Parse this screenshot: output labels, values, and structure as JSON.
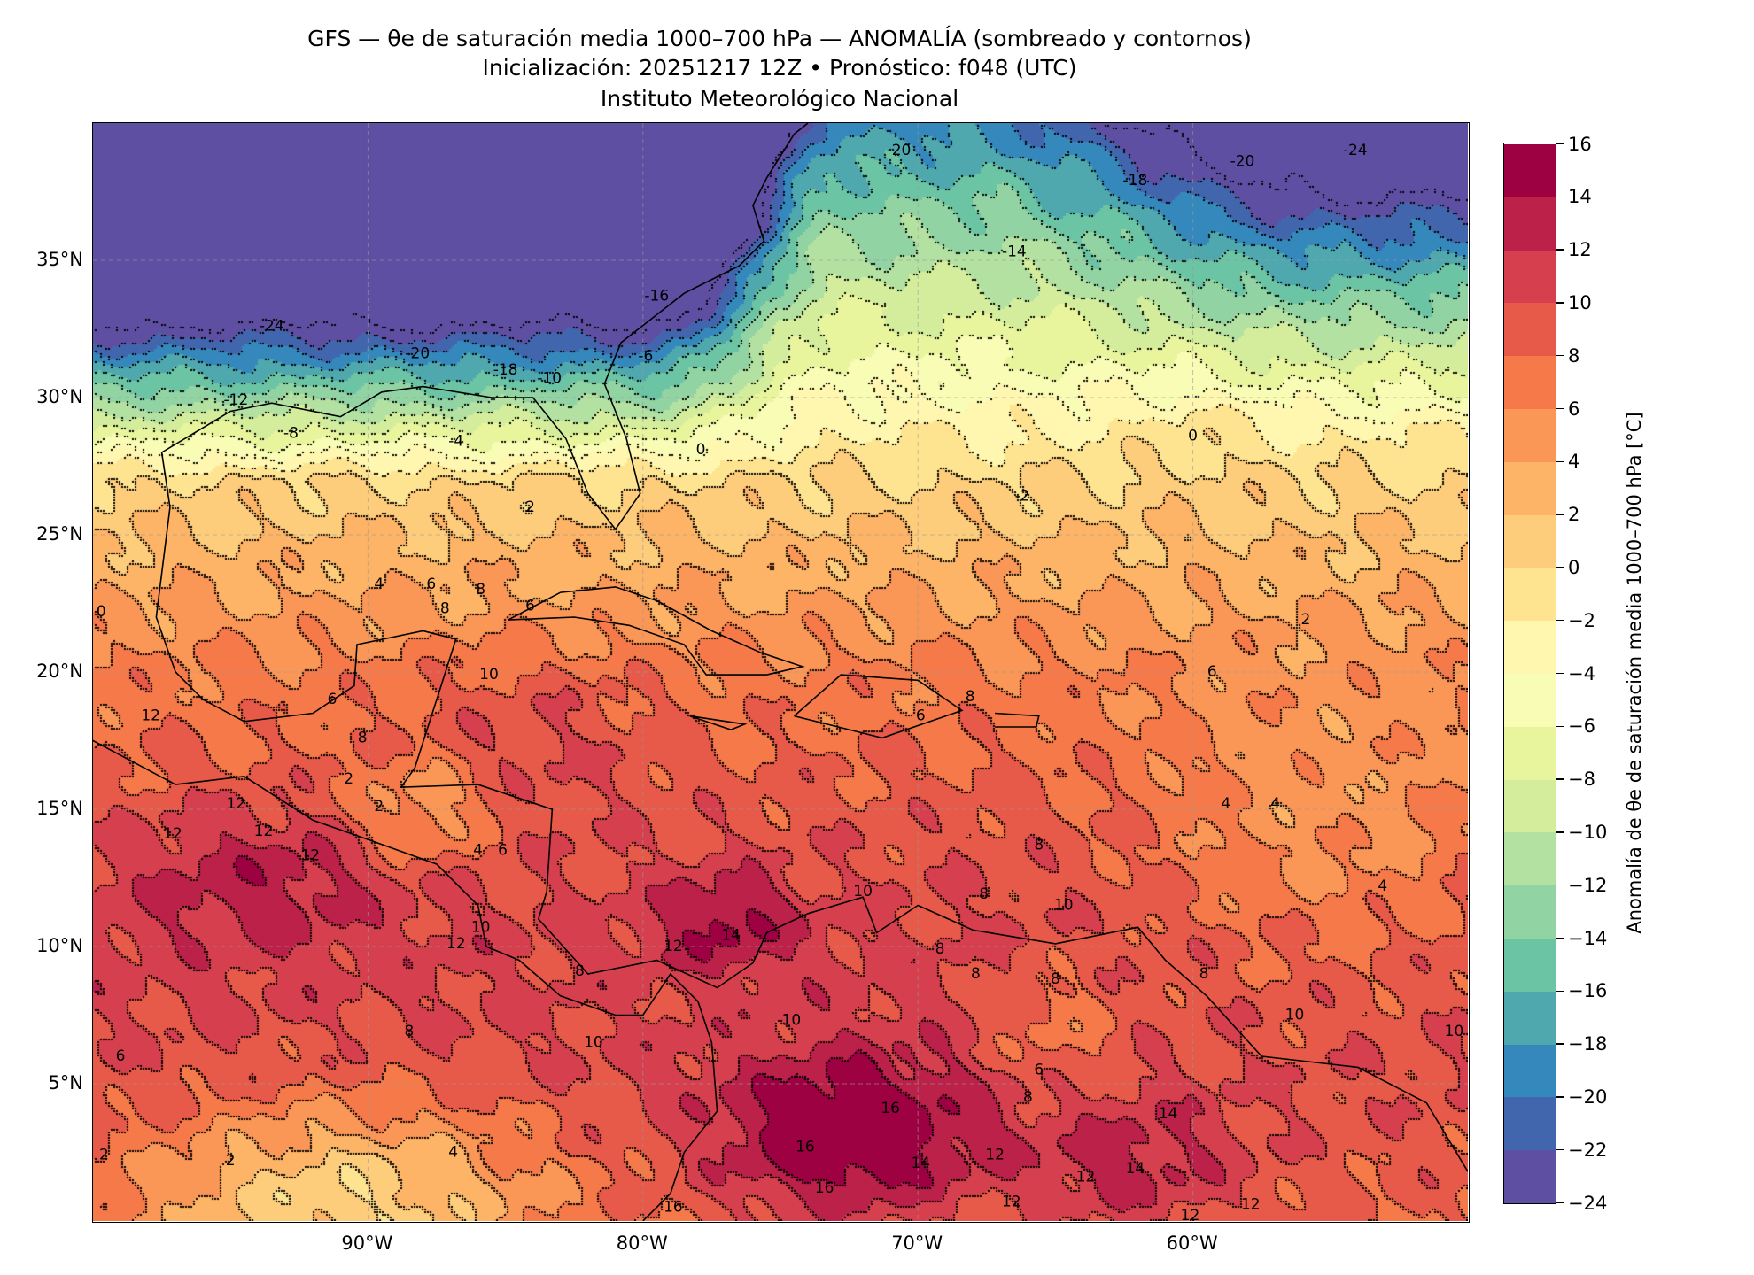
{
  "header": {
    "title_line1": "GFS — θe de saturación media 1000–700 hPa — ANOMALÍA (sombreado y contornos)",
    "title_line2": "Inicialización: 20251217 12Z   •   Pronóstico: f048 (UTC)",
    "title_line3": "Instituto Meteorológico Nacional"
  },
  "chart_data": {
    "type": "heatmap",
    "subtype": "filled-contour map with contour lines",
    "lon_range": [
      -100,
      -50
    ],
    "lat_range": [
      0,
      40
    ],
    "lat_ticks": [
      {
        "value": 5,
        "label": "5°N"
      },
      {
        "value": 10,
        "label": "10°N"
      },
      {
        "value": 15,
        "label": "15°N"
      },
      {
        "value": 20,
        "label": "20°N"
      },
      {
        "value": 25,
        "label": "25°N"
      },
      {
        "value": 30,
        "label": "30°N"
      },
      {
        "value": 35,
        "label": "35°N"
      }
    ],
    "lon_ticks": [
      {
        "value": -90,
        "label": "90°W"
      },
      {
        "value": -80,
        "label": "80°W"
      },
      {
        "value": -70,
        "label": "70°W"
      },
      {
        "value": -60,
        "label": "60°W"
      }
    ],
    "grid": true,
    "colorbar": {
      "label": "Anomalía de θe de saturación media 1000–700 hPa [°C]",
      "levels": [
        -24,
        -22,
        -20,
        -18,
        -16,
        -14,
        -12,
        -10,
        -8,
        -6,
        -4,
        -2,
        0,
        2,
        4,
        6,
        8,
        10,
        12,
        14,
        16
      ],
      "tick_labels": [
        "−24",
        "−22",
        "−20",
        "−18",
        "−16",
        "−14",
        "−12",
        "−10",
        "−8",
        "−6",
        "−4",
        "−2",
        "0",
        "2",
        "4",
        "6",
        "8",
        "10",
        "12",
        "14",
        "16"
      ],
      "colors": [
        "#5e4fa2",
        "#4266ad",
        "#3488bc",
        "#4fa8ad",
        "#6bc4a4",
        "#92d3a3",
        "#b3e1a2",
        "#d3ed9c",
        "#e9f59d",
        "#f9fcb4",
        "#fff6b0",
        "#fee491",
        "#fecd7b",
        "#fdb466",
        "#fa9656",
        "#f67a49",
        "#e75948",
        "#d6404e",
        "#bb2149",
        "#9e0142"
      ],
      "placement": "right"
    },
    "contour_labels": [
      {
        "text": "-24",
        "lon": -93.5,
        "lat": 32.6
      },
      {
        "text": "-20",
        "lon": -88.2,
        "lat": 31.6
      },
      {
        "text": "-18",
        "lon": -85.0,
        "lat": 31.0
      },
      {
        "text": "-12",
        "lon": -94.8,
        "lat": 29.9
      },
      {
        "text": "-8",
        "lon": -92.8,
        "lat": 28.7
      },
      {
        "text": "-4",
        "lon": -86.8,
        "lat": 28.4
      },
      {
        "text": "-10",
        "lon": -83.4,
        "lat": 30.7
      },
      {
        "text": "-6",
        "lon": -79.9,
        "lat": 31.5
      },
      {
        "text": "-16",
        "lon": -79.5,
        "lat": 33.7
      },
      {
        "text": "-14",
        "lon": -66.5,
        "lat": 35.3
      },
      {
        "text": "-18",
        "lon": -62.1,
        "lat": 37.9
      },
      {
        "text": "-20",
        "lon": -58.2,
        "lat": 38.6
      },
      {
        "text": "-20",
        "lon": -70.7,
        "lat": 39.0
      },
      {
        "text": "-24",
        "lon": -54.1,
        "lat": 39.0
      },
      {
        "text": "-2",
        "lon": -66.2,
        "lat": 26.4
      },
      {
        "text": "0",
        "lon": -77.9,
        "lat": 28.1
      },
      {
        "text": "2",
        "lon": -84.1,
        "lat": 26.0
      },
      {
        "text": "4",
        "lon": -89.6,
        "lat": 23.2
      },
      {
        "text": "6",
        "lon": -87.7,
        "lat": 23.2
      },
      {
        "text": "8",
        "lon": -85.9,
        "lat": 23.0
      },
      {
        "text": "8",
        "lon": -87.2,
        "lat": 22.3
      },
      {
        "text": "6",
        "lon": -84.1,
        "lat": 22.4
      },
      {
        "text": "6",
        "lon": -91.3,
        "lat": 19.0
      },
      {
        "text": "10",
        "lon": -85.6,
        "lat": 19.9
      },
      {
        "text": "8",
        "lon": -90.2,
        "lat": 17.6
      },
      {
        "text": "2",
        "lon": -90.7,
        "lat": 16.1
      },
      {
        "text": "2",
        "lon": -89.6,
        "lat": 15.1
      },
      {
        "text": "12",
        "lon": -97.9,
        "lat": 18.4
      },
      {
        "text": "12",
        "lon": -94.8,
        "lat": 15.2
      },
      {
        "text": "12",
        "lon": -93.8,
        "lat": 14.2
      },
      {
        "text": "12",
        "lon": -97.1,
        "lat": 14.1
      },
      {
        "text": "12",
        "lon": -92.1,
        "lat": 13.3
      },
      {
        "text": "4",
        "lon": -86.0,
        "lat": 13.5
      },
      {
        "text": "6",
        "lon": -85.1,
        "lat": 13.5
      },
      {
        "text": "12",
        "lon": -86.8,
        "lat": 10.1
      },
      {
        "text": "10",
        "lon": -85.9,
        "lat": 10.7
      },
      {
        "text": "8",
        "lon": -82.3,
        "lat": 9.1
      },
      {
        "text": "10",
        "lon": -81.8,
        "lat": 6.5
      },
      {
        "text": "8",
        "lon": -88.5,
        "lat": 6.9
      },
      {
        "text": "6",
        "lon": -99.0,
        "lat": 6.0
      },
      {
        "text": "4",
        "lon": -86.9,
        "lat": 2.5
      },
      {
        "text": "2",
        "lon": -95.0,
        "lat": 2.2
      },
      {
        "text": "2",
        "lon": -99.6,
        "lat": 2.4
      },
      {
        "text": "12",
        "lon": -78.9,
        "lat": 10.0
      },
      {
        "text": "14",
        "lon": -76.8,
        "lat": 10.4
      },
      {
        "text": "10",
        "lon": -72.0,
        "lat": 12.0
      },
      {
        "text": "10",
        "lon": -74.6,
        "lat": 7.3
      },
      {
        "text": "16",
        "lon": -71.0,
        "lat": 4.1
      },
      {
        "text": "16",
        "lon": -74.1,
        "lat": 2.7
      },
      {
        "text": "16",
        "lon": -73.4,
        "lat": 1.2
      },
      {
        "text": "16",
        "lon": -78.9,
        "lat": 0.5
      },
      {
        "text": "14",
        "lon": -69.9,
        "lat": 2.1
      },
      {
        "text": "12",
        "lon": -66.6,
        "lat": 0.7
      },
      {
        "text": "12",
        "lon": -67.2,
        "lat": 2.4
      },
      {
        "text": "12",
        "lon": -63.9,
        "lat": 1.6
      },
      {
        "text": "14",
        "lon": -62.1,
        "lat": 1.9
      },
      {
        "text": "14",
        "lon": -60.9,
        "lat": 3.9
      },
      {
        "text": "12",
        "lon": -57.9,
        "lat": 0.6
      },
      {
        "text": "12",
        "lon": -60.1,
        "lat": 0.2
      },
      {
        "text": "8",
        "lon": -66.0,
        "lat": 4.5
      },
      {
        "text": "6",
        "lon": -65.6,
        "lat": 5.5
      },
      {
        "text": "8",
        "lon": -65.0,
        "lat": 8.8
      },
      {
        "text": "8",
        "lon": -67.9,
        "lat": 9.0
      },
      {
        "text": "8",
        "lon": -69.2,
        "lat": 9.9
      },
      {
        "text": "8",
        "lon": -67.6,
        "lat": 11.9
      },
      {
        "text": "10",
        "lon": -64.7,
        "lat": 11.5
      },
      {
        "text": "8",
        "lon": -65.6,
        "lat": 13.7
      },
      {
        "text": "8",
        "lon": -59.6,
        "lat": 9.0
      },
      {
        "text": "10",
        "lon": -56.3,
        "lat": 7.5
      },
      {
        "text": "8",
        "lon": -68.1,
        "lat": 19.1
      },
      {
        "text": "6",
        "lon": -69.9,
        "lat": 18.4
      },
      {
        "text": "6",
        "lon": -59.3,
        "lat": 20.0
      },
      {
        "text": "4",
        "lon": -58.8,
        "lat": 15.2
      },
      {
        "text": "4",
        "lon": -57.0,
        "lat": 15.2
      },
      {
        "text": "4",
        "lon": -53.1,
        "lat": 12.2
      },
      {
        "text": "2",
        "lon": -55.9,
        "lat": 21.9
      },
      {
        "text": "0",
        "lon": -99.7,
        "lat": 22.2
      },
      {
        "text": "10",
        "lon": -50.5,
        "lat": 6.9
      },
      {
        "text": "0",
        "lon": -60.0,
        "lat": 28.6
      }
    ]
  }
}
